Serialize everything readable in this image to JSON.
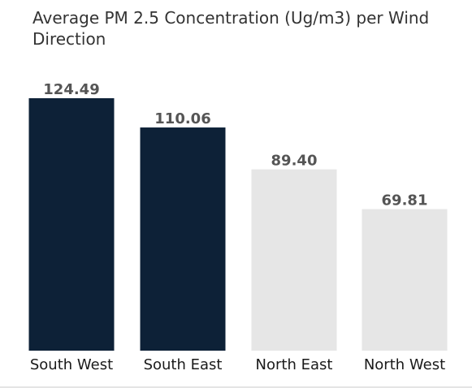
{
  "chart_data": {
    "type": "bar",
    "title": "Average PM 2.5 Concentration (Ug/m3) per Wind Direction",
    "categories": [
      "South West",
      "South East",
      "North East",
      "North West"
    ],
    "values": [
      124.49,
      110.06,
      89.4,
      69.81
    ],
    "value_labels": [
      "124.49",
      "110.06",
      "89.40",
      "69.81"
    ],
    "bar_colors": [
      "#0d2137",
      "#0d2137",
      "#e6e6e6",
      "#e6e6e6"
    ],
    "ylim": [
      0,
      124.49
    ],
    "grid": false,
    "legend": "none"
  }
}
